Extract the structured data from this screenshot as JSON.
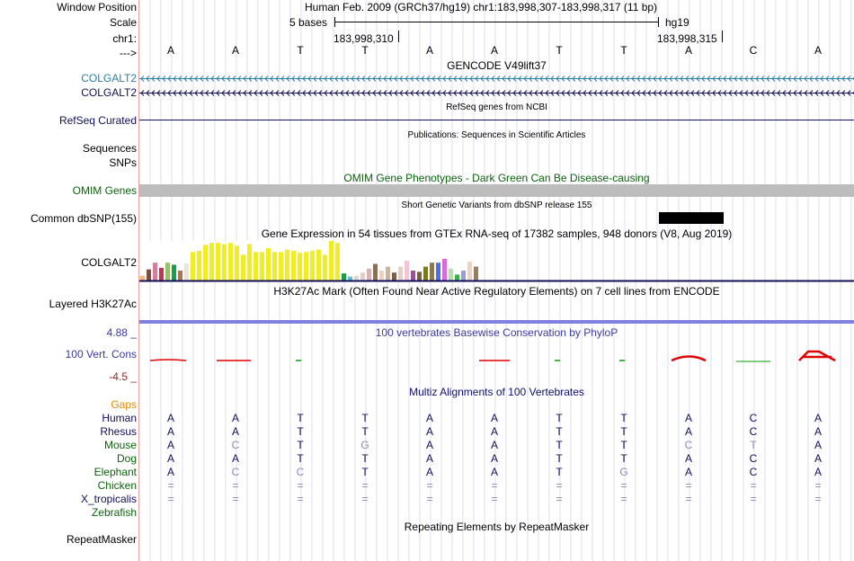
{
  "header": {
    "window_position_label": "Window Position",
    "window_position_value": "Human Feb. 2009 (GRCh37/hg19)   chr1:183,998,307-183,998,317 (11 bp)",
    "scale_label": "Scale",
    "scale_text": "5 bases",
    "scale_assembly": "hg19",
    "chr_label": "chr1:",
    "coord_left": "183,998,310",
    "coord_right": "183,998,315",
    "strand_label": "--->",
    "bases": [
      "A",
      "A",
      "T",
      "T",
      "A",
      "A",
      "T",
      "T",
      "A",
      "C",
      "A"
    ]
  },
  "tracks": {
    "gencode": {
      "title": "GENCODE V49lift37",
      "items": [
        "COLGALT2",
        "COLGALT2"
      ],
      "colors": [
        "#2c7fa8",
        "#10105a"
      ]
    },
    "refseq": {
      "label": "RefSeq Curated",
      "title": "RefSeq genes from NCBI",
      "color": "#10105a"
    },
    "publications": {
      "title": "Publications: Sequences in Scientific Articles",
      "labels": [
        "Sequences",
        "SNPs"
      ]
    },
    "omim": {
      "title": "OMIM Gene Phenotypes - Dark Green Can Be Disease-causing",
      "label": "OMIM Genes",
      "color": "#0d630d",
      "bar_color": "#bdbdbd"
    },
    "dbsnp": {
      "title": "Short Genetic Variants from dbSNP release 155",
      "label": "Common dbSNP(155)"
    },
    "gtex": {
      "title": "Gene Expression in 54 tissues from GTEx RNA-seq of 17382 samples, 948 donors (V8, Aug 2019)",
      "label": "COLGALT2",
      "values": [
        0.12,
        0.28,
        0.45,
        0.32,
        0.45,
        0.4,
        0.25,
        0.43,
        0.72,
        0.75,
        0.9,
        0.95,
        0.95,
        0.92,
        0.95,
        0.88,
        0.65,
        0.92,
        0.72,
        0.72,
        0.82,
        0.72,
        0.72,
        0.78,
        0.75,
        0.7,
        0.72,
        0.75,
        0.78,
        0.65,
        1.0,
        0.95,
        0.18,
        0.1,
        0.12,
        0.2,
        0.3,
        0.42,
        0.25,
        0.35,
        0.2,
        0.35,
        0.5,
        0.25,
        0.22,
        0.35,
        0.45,
        0.45,
        0.55,
        0.3,
        0.15,
        0.25,
        0.48,
        0.35
      ],
      "colors": [
        "#f5b97d",
        "#8b4a3a",
        "#d67c9c",
        "#c4364f",
        "#99c06b",
        "#1b9e4c",
        "#a37a5a",
        "#ede4d8",
        "#eeee22",
        "#eeee22",
        "#eeee22",
        "#eeee22",
        "#eeee22",
        "#eeee22",
        "#eeee22",
        "#eeee22",
        "#eeee22",
        "#eeee22",
        "#eeee22",
        "#eeee22",
        "#eeee22",
        "#eeee22",
        "#eeee22",
        "#eeee22",
        "#eeee22",
        "#eeee22",
        "#eeee22",
        "#eeee22",
        "#eeee22",
        "#eeee22",
        "#eeee22",
        "#eeee22",
        "#1a9e4c",
        "#56c1f0",
        "#dcd7d0",
        "#ecc9c9",
        "#d9b2b2",
        "#8b6f4e",
        "#e9d2c4",
        "#cbb49a",
        "#7a5e48",
        "#e8cfc6",
        "#f2c6d8",
        "#a04c9f",
        "#7a5e48",
        "#7a7f00",
        "#8c7a4f",
        "#4d6ee8",
        "#d86bd8",
        "#b6e0a8",
        "#3cb24a",
        "#9b9bdb",
        "#e9d5c5",
        "#9a7f5a"
      ]
    },
    "h3k27ac": {
      "title": "H3K27Ac Mark (Often Found Near Active Regulatory Elements) on 7 cell lines from ENCODE",
      "label": "Layered H3K27Ac",
      "color": "#8080e0"
    },
    "phylop": {
      "title": "100 vertebrates Basewise Conservation by PhyloP",
      "label": "100 Vert. Cons",
      "max_label": "4.88 _",
      "min_label": "-4.5 _",
      "title_color": "#3a3aa0",
      "min_color": "#8b2a2a"
    },
    "multiz": {
      "title": "Multiz Alignments of 100 Vertebrates",
      "title_color": "#10106e",
      "gaps_label": "Gaps",
      "species": [
        {
          "name": "Human",
          "color": "#10105a",
          "bases": [
            "A",
            "A",
            "T",
            "T",
            "A",
            "A",
            "T",
            "T",
            "A",
            "C",
            "A"
          ],
          "dims": [
            0,
            0,
            0,
            0,
            0,
            0,
            0,
            0,
            0,
            0,
            0
          ]
        },
        {
          "name": "Rhesus",
          "color": "#10105a",
          "bases": [
            "A",
            "A",
            "T",
            "T",
            "A",
            "A",
            "T",
            "T",
            "A",
            "C",
            "A"
          ],
          "dims": [
            0,
            0,
            0,
            0,
            0,
            0,
            0,
            0,
            0,
            0,
            0
          ]
        },
        {
          "name": "Mouse",
          "color": "#0d630d",
          "bases": [
            "A",
            "C",
            "T",
            "G",
            "A",
            "A",
            "T",
            "T",
            "C",
            "T",
            "A"
          ],
          "dims": [
            0,
            1,
            0,
            1,
            0,
            0,
            0,
            0,
            1,
            1,
            0
          ]
        },
        {
          "name": "Dog",
          "color": "#0d630d",
          "bases": [
            "A",
            "A",
            "T",
            "T",
            "A",
            "A",
            "T",
            "T",
            "A",
            "C",
            "A"
          ],
          "dims": [
            0,
            0,
            0,
            0,
            0,
            0,
            0,
            0,
            0,
            0,
            0
          ]
        },
        {
          "name": "Elephant",
          "color": "#0d630d",
          "bases": [
            "A",
            "C",
            "C",
            "T",
            "A",
            "A",
            "T",
            "G",
            "A",
            "C",
            "A"
          ],
          "dims": [
            0,
            1,
            1,
            0,
            0,
            0,
            0,
            1,
            0,
            0,
            0
          ]
        },
        {
          "name": "Chicken",
          "color": "#0d630d",
          "bases": [
            "=",
            "=",
            "=",
            "=",
            "=",
            "=",
            "=",
            "=",
            "=",
            "=",
            "="
          ],
          "dims": [
            1,
            1,
            1,
            1,
            1,
            1,
            1,
            1,
            1,
            1,
            1
          ]
        },
        {
          "name": "X_tropicalis",
          "color": "#10105a",
          "bases": [
            "=",
            "=",
            "=",
            "=",
            "=",
            "=",
            "=",
            "=",
            "=",
            "=",
            "="
          ],
          "dims": [
            1,
            1,
            1,
            1,
            1,
            1,
            1,
            1,
            1,
            1,
            1
          ]
        },
        {
          "name": "Zebrafish",
          "color": "#0d630d",
          "bases": [
            "",
            "",
            "",
            "",
            "",
            "",
            "",
            "",
            "",
            "",
            ""
          ],
          "dims": [
            0,
            0,
            0,
            0,
            0,
            0,
            0,
            0,
            0,
            0,
            0
          ]
        }
      ]
    },
    "repeatmasker": {
      "title": "Repeating Elements by RepeatMasker",
      "label": "RepeatMasker"
    }
  }
}
